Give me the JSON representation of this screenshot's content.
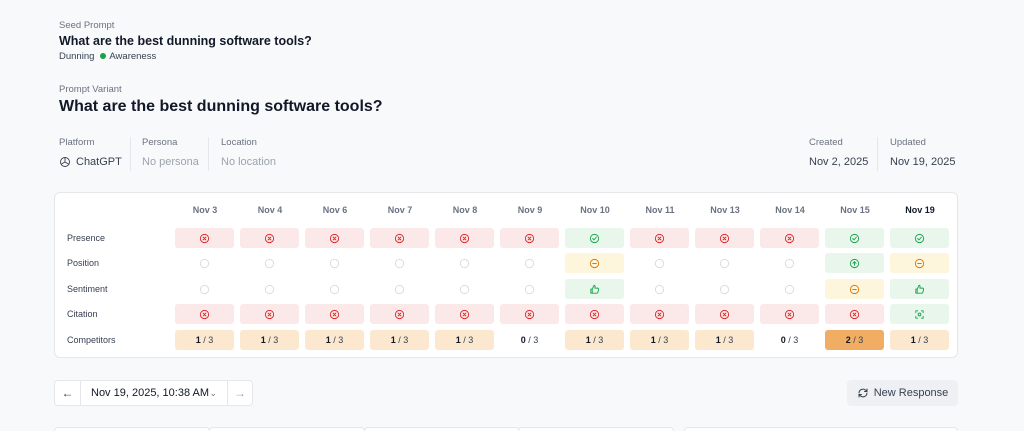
{
  "seed": {
    "label": "Seed Prompt",
    "title": "What are the best dunning software tools?",
    "tag": "Dunning",
    "stage": "Awareness"
  },
  "variant": {
    "label": "Prompt Variant",
    "title": "What are the best dunning software tools?"
  },
  "meta": {
    "platform_label": "Platform",
    "platform_value": "ChatGPT",
    "persona_label": "Persona",
    "persona_value": "No persona",
    "location_label": "Location",
    "location_value": "No location",
    "created_label": "Created",
    "created_value": "Nov 2, 2025",
    "updated_label": "Updated",
    "updated_value": "Nov 19, 2025"
  },
  "grid": {
    "dates": [
      "Nov 3",
      "Nov 4",
      "Nov 6",
      "Nov 7",
      "Nov 8",
      "Nov 9",
      "Nov 10",
      "Nov 11",
      "Nov 13",
      "Nov 14",
      "Nov 15",
      "Nov 19"
    ],
    "active_index": 11,
    "rows": [
      "Presence",
      "Position",
      "Sentiment",
      "Citation",
      "Competitors"
    ],
    "presence": [
      "x",
      "x",
      "x",
      "x",
      "x",
      "x",
      "check",
      "x",
      "x",
      "x",
      "check",
      "check"
    ],
    "position": [
      "none",
      "none",
      "none",
      "none",
      "none",
      "none",
      "minus",
      "none",
      "none",
      "none",
      "up",
      "minus"
    ],
    "sentiment": [
      "none",
      "none",
      "none",
      "none",
      "none",
      "none",
      "thumb",
      "none",
      "none",
      "none",
      "minus",
      "thumb"
    ],
    "citation": [
      "x",
      "x",
      "x",
      "x",
      "x",
      "x",
      "x",
      "x",
      "x",
      "x",
      "x",
      "scan"
    ],
    "competitors": [
      {
        "count": "1",
        "total": "/ 3",
        "style": "peach"
      },
      {
        "count": "1",
        "total": "/ 3",
        "style": "peach"
      },
      {
        "count": "1",
        "total": "/ 3",
        "style": "peach"
      },
      {
        "count": "1",
        "total": "/ 3",
        "style": "peach"
      },
      {
        "count": "1",
        "total": "/ 3",
        "style": "peach"
      },
      {
        "count": "0",
        "total": "/ 3",
        "style": "plain"
      },
      {
        "count": "1",
        "total": "/ 3",
        "style": "peach"
      },
      {
        "count": "1",
        "total": "/ 3",
        "style": "peach"
      },
      {
        "count": "1",
        "total": "/ 3",
        "style": "peach"
      },
      {
        "count": "0",
        "total": "/ 3",
        "style": "plain"
      },
      {
        "count": "2",
        "total": "/ 3",
        "style": "orange"
      },
      {
        "count": "1",
        "total": "/ 3",
        "style": "peach"
      }
    ]
  },
  "nav": {
    "prev_icon": "arrow-left-icon",
    "date_value": "Nov 19, 2025, 10:38 AM",
    "next_icon": "arrow-right-icon"
  },
  "new_response": {
    "label": "New Response",
    "icon": "refresh-icon"
  },
  "colors": {
    "red_bg": "#fbe9ea",
    "red": "#dc2626",
    "green_bg": "#e8f6ec",
    "green": "#16a34a",
    "yellow_bg": "#fdf5dc",
    "yellow": "#d97706",
    "peach_bg": "#fbe8cf",
    "orange_bg": "#f0ad63"
  }
}
